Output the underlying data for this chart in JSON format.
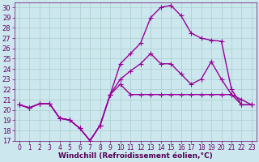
{
  "title": "",
  "xlabel": "Windchill (Refroidissement éolien,°C)",
  "ylabel": "",
  "xlim": [
    -0.5,
    23.5
  ],
  "ylim": [
    17,
    30.5
  ],
  "xticks": [
    0,
    1,
    2,
    3,
    4,
    5,
    6,
    7,
    8,
    9,
    10,
    11,
    12,
    13,
    14,
    15,
    16,
    17,
    18,
    19,
    20,
    21,
    22,
    23
  ],
  "yticks": [
    17,
    18,
    19,
    20,
    21,
    22,
    23,
    24,
    25,
    26,
    27,
    28,
    29,
    30
  ],
  "background_color": "#cce8ee",
  "grid_color": "#aacccc",
  "line_color": "#990099",
  "line1_x": [
    0,
    1,
    2,
    3,
    4,
    5,
    6,
    7,
    8,
    9,
    10,
    11,
    12,
    13,
    14,
    15,
    16,
    17,
    18,
    19,
    20,
    21,
    22,
    23
  ],
  "line1_y": [
    20.5,
    20.2,
    20.6,
    20.6,
    19.2,
    19.0,
    18.2,
    17.0,
    18.5,
    21.5,
    22.5,
    21.5,
    21.5,
    21.5,
    21.5,
    21.5,
    21.5,
    21.5,
    21.5,
    21.5,
    21.5,
    21.5,
    20.5,
    20.5
  ],
  "line2_x": [
    0,
    1,
    2,
    3,
    4,
    5,
    6,
    7,
    8,
    9,
    10,
    11,
    12,
    13,
    14,
    15,
    16,
    17,
    18,
    19,
    20,
    21,
    22,
    23
  ],
  "line2_y": [
    20.5,
    20.2,
    20.6,
    20.6,
    19.2,
    19.0,
    18.2,
    17.0,
    18.5,
    21.5,
    23.0,
    23.8,
    24.5,
    25.5,
    24.5,
    24.5,
    23.5,
    22.5,
    23.0,
    24.7,
    23.0,
    21.5,
    21.0,
    20.5
  ],
  "line3_x": [
    0,
    1,
    2,
    3,
    4,
    5,
    6,
    7,
    8,
    9,
    10,
    11,
    12,
    13,
    14,
    15,
    16,
    17,
    18,
    19,
    20,
    21,
    22,
    23
  ],
  "line3_y": [
    20.5,
    20.2,
    20.6,
    20.6,
    19.2,
    19.0,
    18.2,
    17.0,
    18.5,
    21.5,
    24.5,
    25.5,
    26.5,
    29.0,
    30.0,
    30.2,
    29.2,
    27.5,
    27.0,
    26.8,
    26.7,
    22.0,
    20.5,
    20.5
  ],
  "marker": "+",
  "markersize": 4,
  "linewidth": 1.0,
  "tick_fontsize": 5.5,
  "label_fontsize": 6.5
}
